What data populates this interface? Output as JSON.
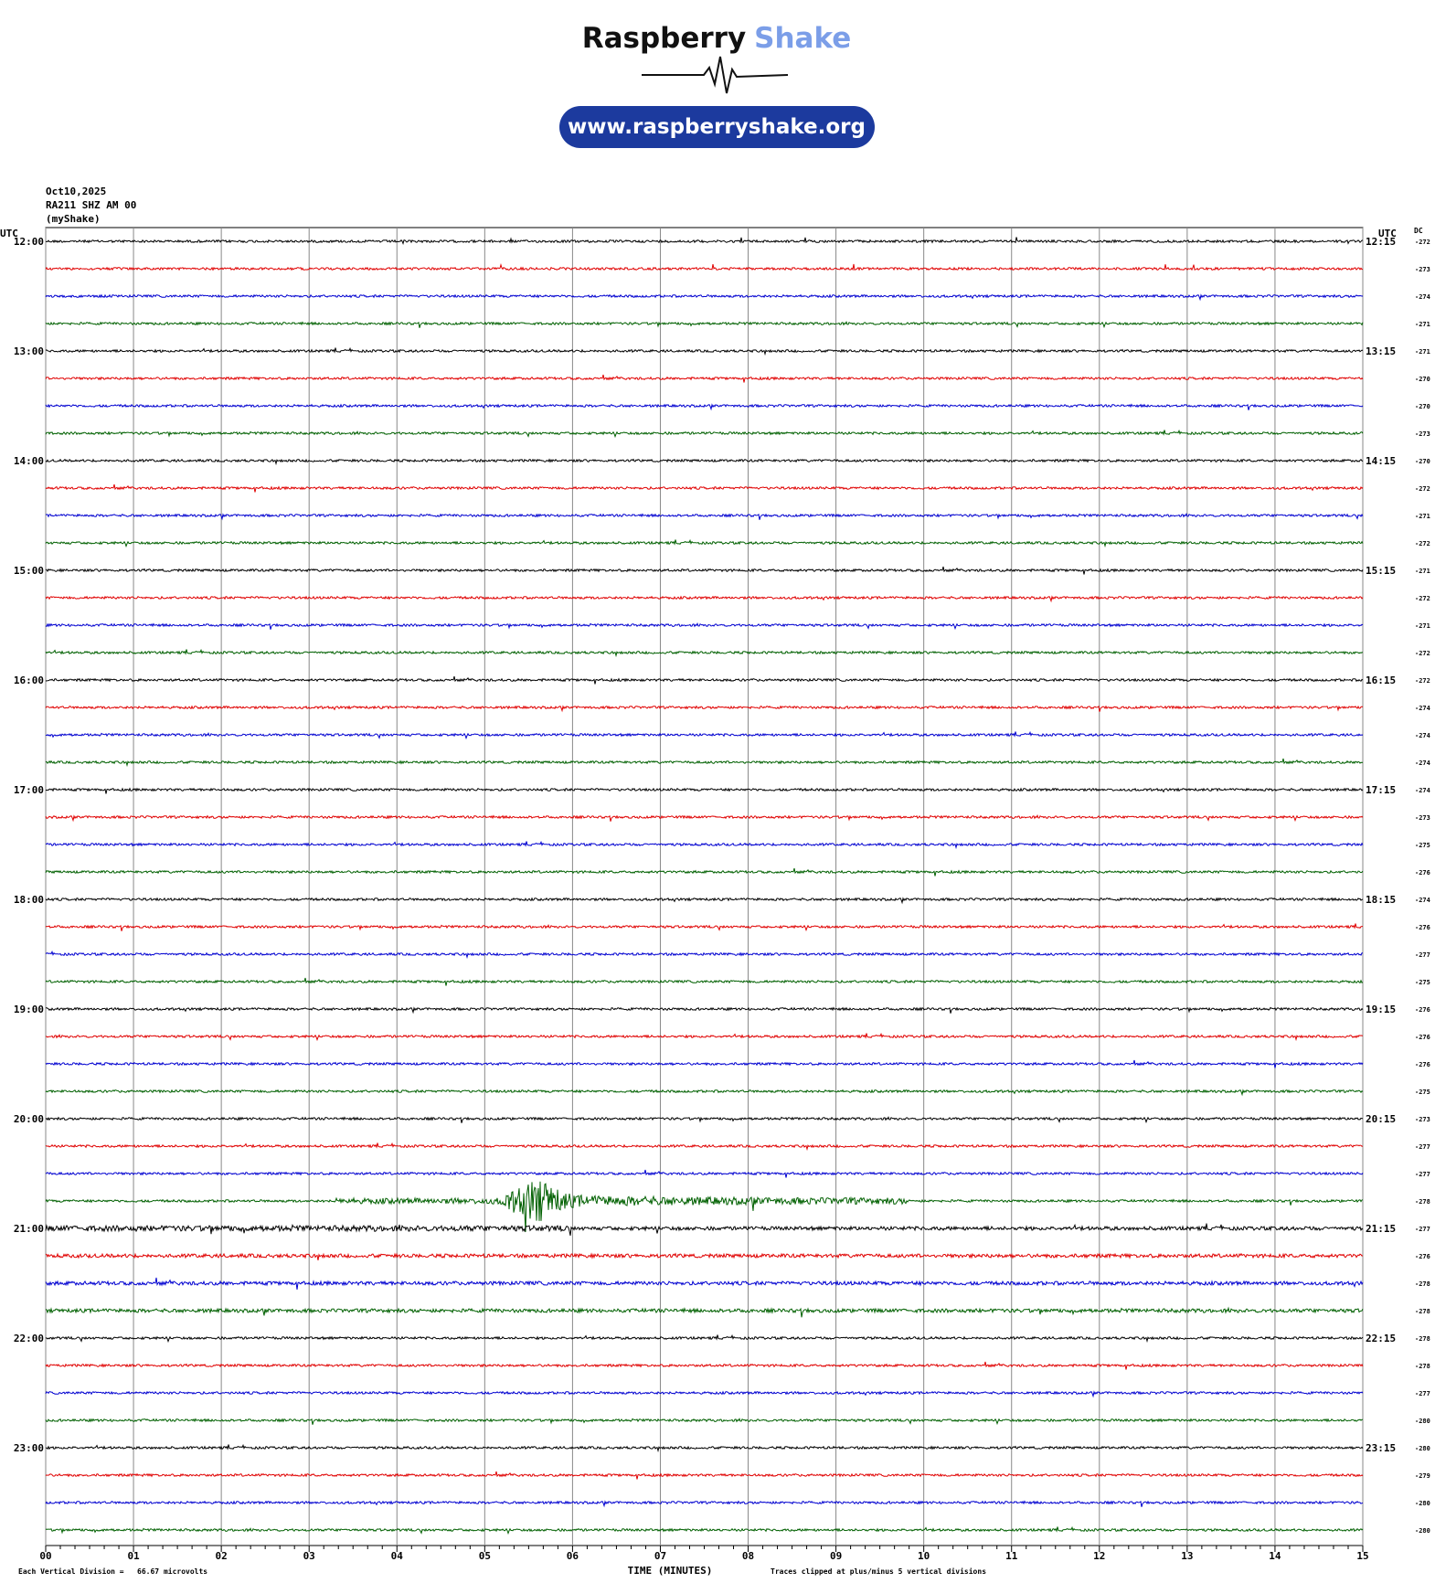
{
  "header": {
    "brand_1": "Raspberry",
    "brand_2": "Shake",
    "url": "www.raspberryshake.org"
  },
  "helicorder": {
    "date": "Oct10,2025",
    "station": "RA211 SHZ AM 00",
    "source": "(myShake)",
    "utc_left": "UTC",
    "utc_right": "UTC",
    "dc_label": "DC",
    "left_times": [
      "12:00",
      "13:00",
      "14:00",
      "15:00",
      "16:00",
      "17:00",
      "18:00",
      "19:00",
      "20:00",
      "21:00",
      "22:00",
      "23:00"
    ],
    "right_times": [
      "12:15",
      "13:15",
      "14:15",
      "15:15",
      "16:15",
      "17:15",
      "18:15",
      "19:15",
      "20:15",
      "21:15",
      "22:15",
      "23:15"
    ],
    "dc_values": [
      -272,
      -273,
      -274,
      -271,
      -271,
      -270,
      -270,
      -273,
      -270,
      -272,
      -271,
      -272,
      -271,
      -272,
      -271,
      -272,
      -272,
      -274,
      -274,
      -274,
      -274,
      -273,
      -275,
      -276,
      -274,
      -276,
      -277,
      -275,
      -276,
      -276,
      -276,
      -275,
      -273,
      -277,
      -277,
      -278,
      -277,
      -276,
      -278,
      -278,
      -278,
      -278,
      -277,
      -280,
      -280,
      -279,
      -280,
      -280
    ],
    "trace_colors": [
      "#000000",
      "#e00000",
      "#0000d0",
      "#006000"
    ],
    "x_ticks": [
      "00",
      "01",
      "02",
      "03",
      "04",
      "05",
      "06",
      "07",
      "08",
      "09",
      "10",
      "11",
      "12",
      "13",
      "14",
      "15"
    ],
    "x_axis_label": "TIME (MINUTES)",
    "scale_note": "Each Vertical Division =   66.67 microvolts",
    "clip_note": "Traces clipped at plus/minus 5 vertical divisions"
  }
}
